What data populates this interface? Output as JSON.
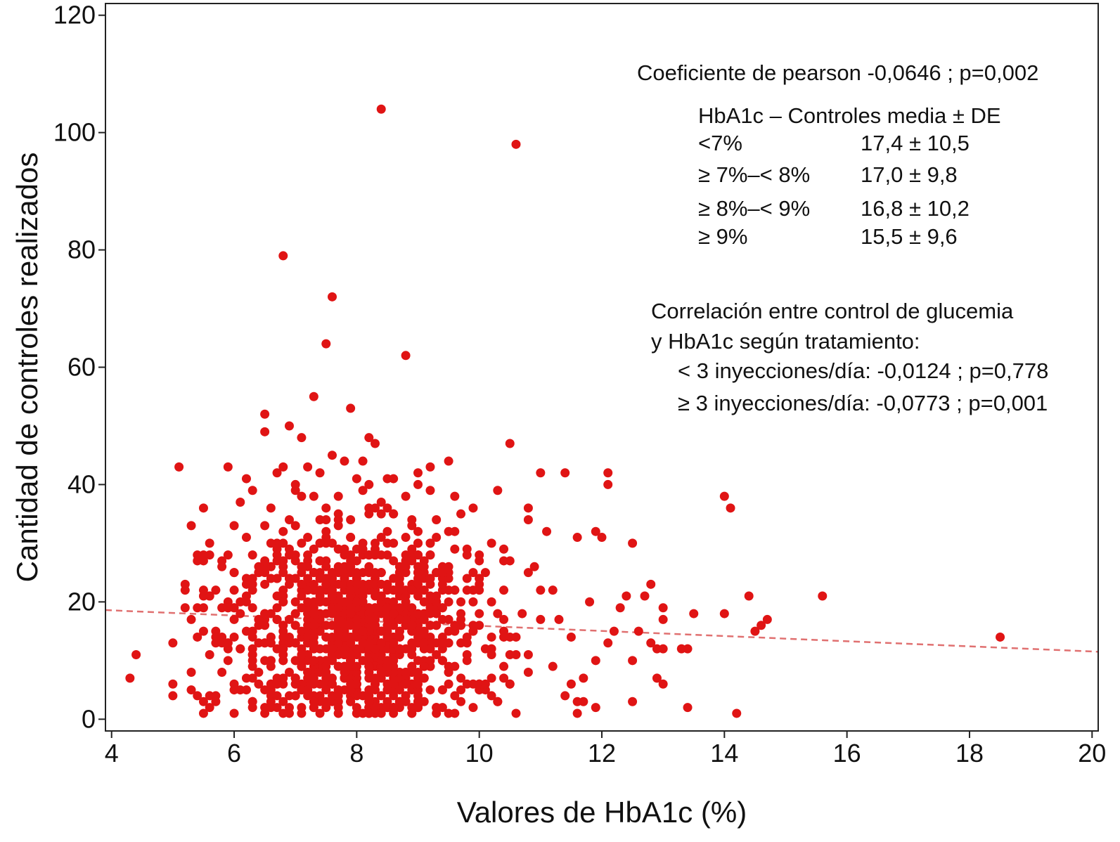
{
  "chart_data": {
    "type": "scatter",
    "title": "",
    "xlabel": "Valores de HbA1c (%)",
    "ylabel": "Cantidad de controles realizados",
    "xlim": [
      3.9,
      20.1
    ],
    "ylim": [
      -2,
      122
    ],
    "xticks": [
      4,
      6,
      8,
      10,
      12,
      14,
      16,
      18,
      20
    ],
    "yticks": [
      0,
      20,
      40,
      60,
      80,
      100,
      120
    ],
    "grid": false,
    "point_color": "#e01414",
    "trend_color": "#e07070",
    "trendline": {
      "x": [
        3.9,
        20.1
      ],
      "y": [
        18.6,
        11.5
      ]
    },
    "annotations": {
      "pearson": "Coeficiente de pearson -0,0646 ; p=0,002",
      "table_header": "HbA1c – Controles media ± DE",
      "table_rows": [
        {
          "range": "<7%",
          "value": "17,4 ± 10,5"
        },
        {
          "range": "≥ 7%–< 8%",
          "value": "17,0 ± 9,8"
        },
        {
          "range": "≥ 8%–< 9%",
          "value": "16,8 ± 10,2"
        },
        {
          "range": "≥ 9%",
          "value": "15,5 ± 9,6"
        }
      ],
      "corr_title_1": "Correlación entre control de glucemia",
      "corr_title_2": "y HbA1c según tratamiento:",
      "corr_line_1": "< 3 inyecciones/día: -0,0124 ; p=0,778",
      "corr_line_2": "≥ 3 inyecciones/día: -0,0773 ; p=0,001"
    },
    "points": [
      [
        8.4,
        104
      ],
      [
        10.6,
        98
      ],
      [
        6.8,
        79
      ],
      [
        7.6,
        72
      ],
      [
        7.5,
        64
      ],
      [
        8.8,
        62
      ],
      [
        7.3,
        55
      ],
      [
        7.9,
        53
      ],
      [
        6.5,
        52
      ],
      [
        6.5,
        49
      ],
      [
        6.9,
        50
      ],
      [
        10.5,
        47
      ],
      [
        8.2,
        48
      ],
      [
        8.3,
        47
      ],
      [
        7.1,
        48
      ],
      [
        9.5,
        44
      ],
      [
        5.1,
        43
      ],
      [
        5.9,
        43
      ],
      [
        11.0,
        42
      ],
      [
        11.4,
        42
      ],
      [
        12.1,
        42
      ],
      [
        12.1,
        40
      ],
      [
        10.3,
        39
      ],
      [
        10.8,
        36
      ],
      [
        14.0,
        38
      ],
      [
        14.1,
        36
      ],
      [
        5.5,
        36
      ],
      [
        11.1,
        32
      ],
      [
        11.9,
        32
      ],
      [
        12.0,
        31
      ],
      [
        11.6,
        31
      ],
      [
        12.5,
        30
      ],
      [
        4.3,
        7
      ],
      [
        4.4,
        11
      ],
      [
        5.0,
        13
      ],
      [
        5.0,
        6
      ],
      [
        5.0,
        4
      ],
      [
        5.3,
        5
      ],
      [
        5.4,
        4
      ],
      [
        5.6,
        2
      ],
      [
        6.0,
        1
      ],
      [
        6.5,
        1
      ],
      [
        10.6,
        1
      ],
      [
        11.6,
        1
      ],
      [
        11.9,
        2
      ],
      [
        12.5,
        3
      ],
      [
        13.4,
        2
      ],
      [
        14.2,
        1
      ],
      [
        13.0,
        6
      ],
      [
        12.9,
        7
      ],
      [
        13.0,
        12
      ],
      [
        13.4,
        12
      ],
      [
        13.3,
        12
      ],
      [
        13.0,
        17
      ],
      [
        13.0,
        19
      ],
      [
        13.5,
        18
      ],
      [
        14.0,
        18
      ],
      [
        14.4,
        21
      ],
      [
        14.5,
        15
      ],
      [
        14.6,
        16
      ],
      [
        14.7,
        17
      ],
      [
        15.6,
        21
      ],
      [
        18.5,
        14
      ],
      [
        12.3,
        19
      ],
      [
        12.7,
        21
      ],
      [
        12.8,
        23
      ],
      [
        12.4,
        21
      ],
      [
        12.2,
        15
      ],
      [
        12.1,
        13
      ],
      [
        12.6,
        15
      ],
      [
        12.8,
        13
      ],
      [
        12.5,
        10
      ],
      [
        12.9,
        12
      ],
      [
        11.9,
        10
      ],
      [
        11.8,
        20
      ],
      [
        11.7,
        7
      ],
      [
        11.5,
        6
      ],
      [
        11.4,
        4
      ],
      [
        11.2,
        9
      ],
      [
        11.5,
        14
      ],
      [
        11.3,
        17
      ],
      [
        11.0,
        22
      ],
      [
        10.9,
        26
      ],
      [
        10.8,
        25
      ],
      [
        10.7,
        18
      ],
      [
        10.4,
        27
      ],
      [
        10.2,
        30
      ],
      [
        9.8,
        29
      ],
      [
        9.7,
        35
      ],
      [
        9.6,
        32
      ],
      [
        9.9,
        36
      ],
      [
        10.0,
        24
      ],
      [
        10.6,
        14
      ],
      [
        10.4,
        9
      ],
      [
        10.2,
        11
      ],
      [
        10.5,
        6
      ],
      [
        10.3,
        3
      ],
      [
        9.9,
        2
      ],
      [
        9.6,
        1
      ],
      [
        9.3,
        2
      ],
      [
        9.2,
        5
      ],
      [
        9.5,
        8
      ],
      [
        9.4,
        13
      ],
      [
        9.7,
        18
      ],
      [
        9.8,
        22
      ],
      [
        9.1,
        26
      ],
      [
        9.0,
        30
      ],
      [
        9.3,
        34
      ],
      [
        9.6,
        38
      ],
      [
        9.0,
        42
      ],
      [
        8.6,
        41
      ],
      [
        8.8,
        38
      ],
      [
        8.6,
        35
      ],
      [
        9.2,
        43
      ],
      [
        9.0,
        40
      ],
      [
        5.6,
        30
      ],
      [
        5.8,
        27
      ],
      [
        6.0,
        33
      ],
      [
        6.1,
        37
      ],
      [
        6.2,
        41
      ],
      [
        6.3,
        39
      ],
      [
        6.6,
        36
      ],
      [
        6.7,
        42
      ],
      [
        6.8,
        43
      ],
      [
        7.0,
        40
      ],
      [
        7.2,
        43
      ],
      [
        7.4,
        42
      ],
      [
        7.6,
        45
      ],
      [
        7.8,
        44
      ],
      [
        8.0,
        41
      ],
      [
        8.1,
        39
      ],
      [
        5.7,
        15
      ],
      [
        5.5,
        22
      ],
      [
        5.4,
        28
      ],
      [
        5.2,
        19
      ],
      [
        5.6,
        11
      ],
      [
        5.8,
        8
      ],
      [
        6.1,
        5
      ],
      [
        6.3,
        3
      ],
      [
        6.9,
        2
      ],
      [
        7.1,
        1
      ],
      [
        7.4,
        1
      ],
      [
        7.7,
        1
      ],
      [
        8.0,
        1
      ],
      [
        8.3,
        1
      ],
      [
        8.6,
        2
      ],
      [
        8.9,
        1
      ],
      [
        9.0,
        3
      ],
      [
        6.0,
        25
      ],
      [
        6.2,
        21
      ],
      [
        6.4,
        17
      ],
      [
        6.1,
        12
      ],
      [
        6.3,
        9
      ],
      [
        6.7,
        6
      ],
      [
        7.0,
        4
      ],
      [
        7.3,
        3
      ],
      [
        7.6,
        4
      ],
      [
        7.9,
        3
      ],
      [
        8.2,
        4
      ],
      [
        8.5,
        5
      ],
      [
        8.8,
        6
      ],
      [
        9.1,
        9
      ],
      [
        9.3,
        16
      ],
      [
        9.5,
        20
      ],
      [
        9.4,
        25
      ],
      [
        9.2,
        28
      ],
      [
        8.9,
        34
      ],
      [
        8.4,
        37
      ],
      [
        8.1,
        44
      ],
      [
        7.7,
        38
      ],
      [
        7.3,
        38
      ],
      [
        6.9,
        34
      ],
      [
        6.6,
        30
      ],
      [
        6.4,
        26
      ]
    ],
    "dense_cluster": {
      "mean_x": 8.0,
      "sd_x": 0.95,
      "mean_y": 15.5,
      "sd_y": 8.5,
      "count": 1050
    }
  }
}
